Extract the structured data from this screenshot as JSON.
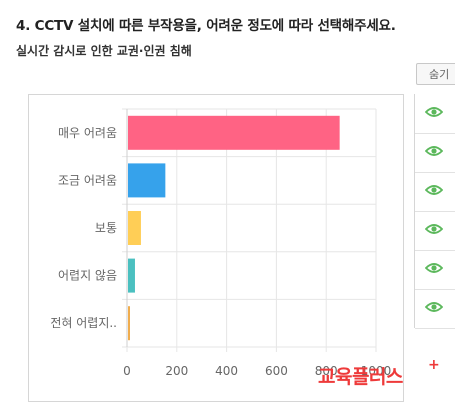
{
  "question": {
    "title": "4. CCTV 설치에 따른 부작용을, 어려운 정도에 따라 선택해주세요.",
    "subtitle": "실시간 감시로 인한 교권·인권 침해"
  },
  "toolbar": {
    "hide_label": "숨기"
  },
  "brand": {
    "name": "교육플러스",
    "plus": "+"
  },
  "legend_rows": [
    {
      "icon": "eye-icon"
    },
    {
      "icon": "eye-icon"
    },
    {
      "icon": "eye-icon"
    },
    {
      "icon": "eye-icon"
    },
    {
      "icon": "eye-icon"
    },
    {
      "icon": "eye-icon"
    }
  ],
  "chart_data": {
    "type": "bar",
    "orientation": "horizontal",
    "categories": [
      "매우 어려움",
      "조금 어려움",
      "보통",
      "어렵지 않음",
      "전혀 어렵지.."
    ],
    "values": [
      850,
      150,
      52,
      28,
      8
    ],
    "colors": [
      "#ff6384",
      "#36a2eb",
      "#ffce56",
      "#4bc0c0",
      "#f0ad4e"
    ],
    "xlim": [
      0,
      1000
    ],
    "xticks": [
      "0",
      "200",
      "400",
      "600",
      "800",
      "1000"
    ],
    "grid": true
  }
}
